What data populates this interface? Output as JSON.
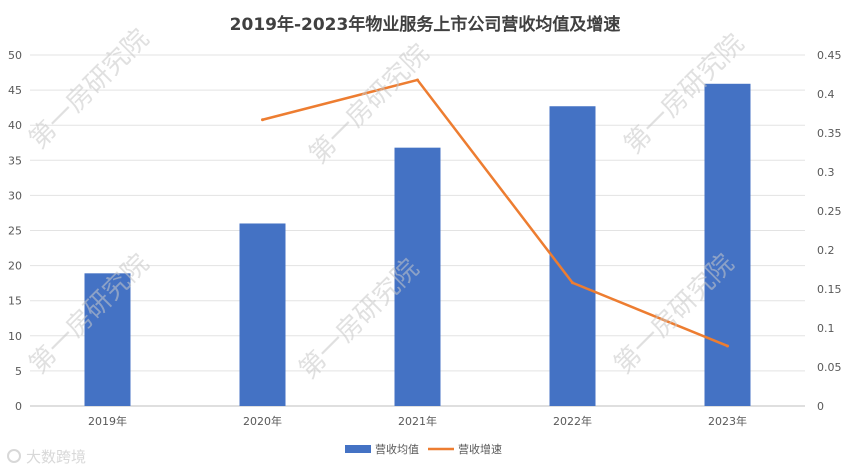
{
  "chart_data": {
    "type": "bar",
    "title": "2019年-2023年物业服务上市公司营收均值及增速",
    "categories": [
      "2019年",
      "2020年",
      "2021年",
      "2022年",
      "2023年"
    ],
    "series": [
      {
        "name": "营收均值",
        "type": "bar",
        "axis": "left",
        "color": "#4472C4",
        "values": [
          18.9,
          26.0,
          36.8,
          42.7,
          45.9
        ]
      },
      {
        "name": "营收增速",
        "type": "line",
        "axis": "right",
        "color": "#ED7D31",
        "values": [
          null,
          0.367,
          0.418,
          0.158,
          0.077
        ]
      }
    ],
    "y_left": {
      "min": 0,
      "max": 50,
      "ticks": [
        "0",
        "5",
        "10",
        "15",
        "20",
        "25",
        "30",
        "35",
        "40",
        "45",
        "50"
      ]
    },
    "y_right": {
      "min": 0,
      "max": 0.45,
      "ticks": [
        "0",
        "0.05",
        "0.1",
        "0.15",
        "0.2",
        "0.25",
        "0.3",
        "0.35",
        "0.4",
        "0.45"
      ]
    },
    "grid": true,
    "legend_position": "bottom"
  },
  "watermark": {
    "text": "第一房研究院"
  },
  "logo": {
    "text": "大数跨境"
  }
}
